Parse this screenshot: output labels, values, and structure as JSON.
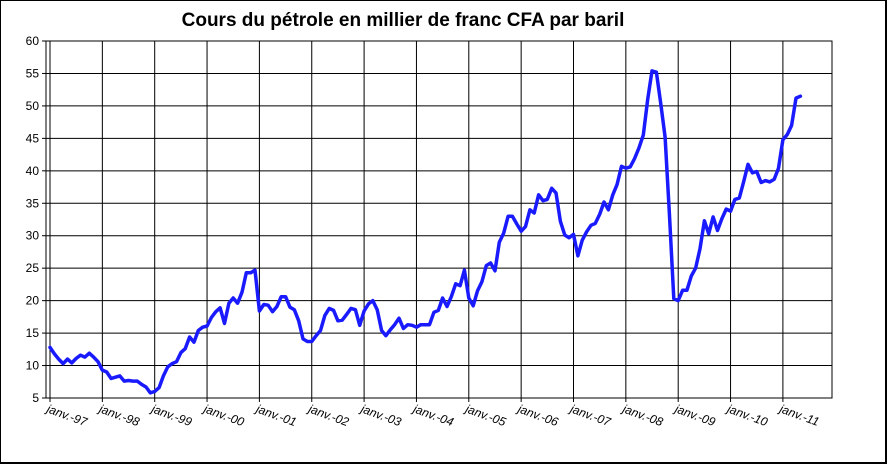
{
  "chart_data": {
    "type": "line",
    "title": "Cours du pétrole en millier de franc CFA par baril",
    "xlabel": "",
    "ylabel": "",
    "ylim": [
      5,
      60
    ],
    "y_ticks": [
      5,
      10,
      15,
      20,
      25,
      30,
      35,
      40,
      45,
      50,
      55,
      60
    ],
    "x_ticks": [
      "janv.-97",
      "janv.-98",
      "janv.-99",
      "janv.-00",
      "janv.-01",
      "janv.-02",
      "janv.-03",
      "janv.-04",
      "janv.-05",
      "janv.-06",
      "janv.-07",
      "janv.-08",
      "janv.-09",
      "janv.-10",
      "janv.-11"
    ],
    "grid": true,
    "legend": "none",
    "line_color": "#1a1aff",
    "series": [
      {
        "x_start": "janv.-97",
        "x_step": "month",
        "values": [
          12.8,
          11.8,
          11.0,
          10.3,
          11.0,
          10.4,
          11.1,
          11.6,
          11.3,
          11.9,
          11.3,
          10.6,
          9.3,
          9.0,
          8.0,
          8.2,
          8.4,
          7.6,
          7.7,
          7.6,
          7.6,
          7.1,
          6.7,
          5.8,
          6.0,
          6.6,
          8.4,
          9.8,
          10.3,
          10.6,
          12.0,
          12.6,
          14.4,
          13.6,
          15.4,
          15.9,
          16.1,
          17.4,
          18.3,
          18.9,
          16.5,
          19.6,
          20.4,
          19.6,
          21.3,
          24.3,
          24.3,
          24.7,
          18.4,
          19.4,
          19.3,
          18.3,
          19.1,
          20.6,
          20.6,
          19.0,
          18.6,
          16.9,
          14.1,
          13.7,
          13.7,
          14.6,
          15.4,
          17.7,
          18.8,
          18.5,
          16.9,
          17.0,
          17.9,
          18.8,
          18.6,
          16.2,
          18.4,
          19.5,
          20.0,
          18.6,
          15.4,
          14.6,
          15.5,
          16.3,
          17.3,
          15.7,
          16.3,
          16.2,
          15.9,
          16.3,
          16.3,
          16.3,
          18.2,
          18.5,
          20.4,
          19.1,
          20.6,
          22.6,
          22.3,
          24.7,
          20.4,
          19.2,
          21.5,
          22.9,
          25.4,
          25.8,
          24.6,
          29.0,
          30.4,
          33.0,
          33.0,
          31.8,
          30.7,
          31.4,
          34.0,
          33.5,
          36.3,
          35.4,
          35.6,
          37.3,
          36.6,
          32.2,
          30.1,
          29.7,
          30.2,
          26.9,
          29.3,
          30.6,
          31.6,
          31.9,
          33.3,
          35.2,
          34.0,
          36.3,
          37.9,
          40.7,
          40.4,
          40.6,
          41.9,
          43.5,
          45.5,
          51.0,
          55.4,
          55.2,
          50.3,
          45.2,
          33.1,
          20.3,
          20.0,
          21.6,
          21.6,
          23.8,
          25.0,
          28.0,
          32.3,
          30.3,
          32.9,
          30.8,
          32.6,
          34.1,
          33.8,
          35.6,
          35.8,
          38.3,
          41.0,
          39.7,
          39.9,
          38.2,
          38.5,
          38.3,
          38.7,
          40.4,
          44.8,
          45.6,
          47.0,
          51.2,
          51.5
        ]
      }
    ]
  }
}
